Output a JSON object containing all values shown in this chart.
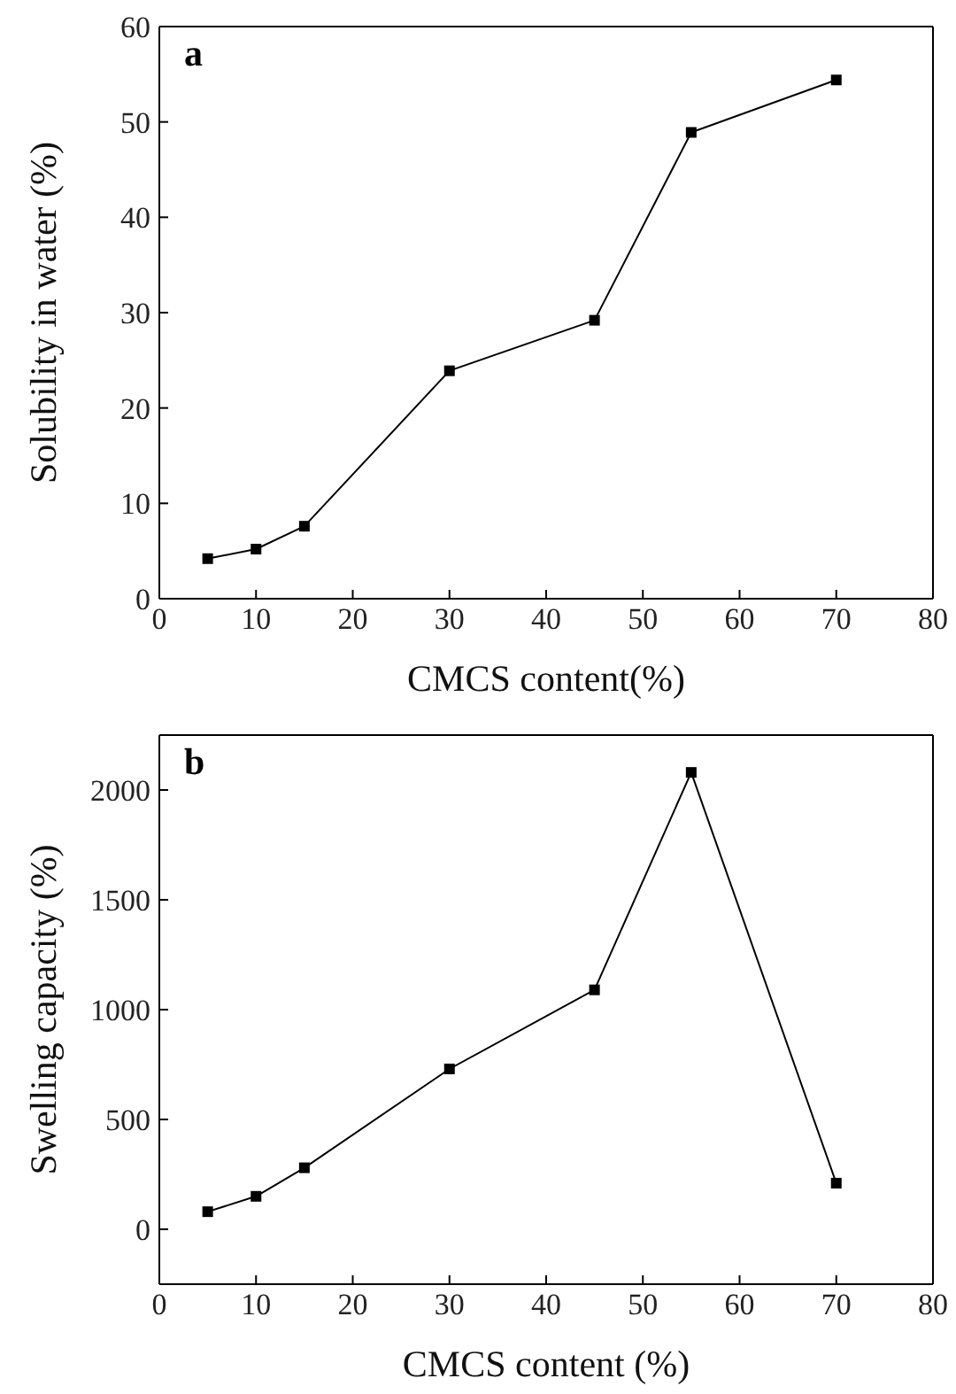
{
  "chart_data": [
    {
      "type": "line",
      "xlabel": "CMCS content(%)",
      "ylabel": "Solubility in water (%)",
      "annotations": [
        "a"
      ],
      "x": [
        5,
        10,
        15,
        30,
        45,
        55,
        70
      ],
      "series": [
        {
          "color": "#000000",
          "values": [
            4.2,
            5.2,
            7.6,
            23.9,
            29.2,
            48.9,
            54.4
          ]
        }
      ],
      "xlim": [
        0,
        80
      ],
      "xticks": [
        0,
        10,
        20,
        30,
        40,
        50,
        60,
        70,
        80
      ],
      "ylim": [
        0,
        60
      ],
      "yticks": [
        0,
        10,
        20,
        30,
        40,
        50,
        60
      ],
      "grid": false,
      "legend": false,
      "marker": "square",
      "line_style": "solid"
    },
    {
      "type": "line",
      "xlabel": "CMCS content (%)",
      "ylabel": "Swelling capacity (%)",
      "annotations": [
        "b"
      ],
      "x": [
        5,
        10,
        15,
        30,
        45,
        55,
        70
      ],
      "series": [
        {
          "color": "#000000",
          "values": [
            80,
            150,
            280,
            730,
            1090,
            2080,
            210
          ]
        }
      ],
      "xlim": [
        0,
        80
      ],
      "xticks": [
        0,
        10,
        20,
        30,
        40,
        50,
        60,
        70,
        80
      ],
      "ylim": [
        -250,
        2250
      ],
      "yticks": [
        0,
        500,
        1000,
        1500,
        2000
      ],
      "grid": false,
      "legend": false,
      "marker": "square",
      "line_style": "solid"
    }
  ]
}
